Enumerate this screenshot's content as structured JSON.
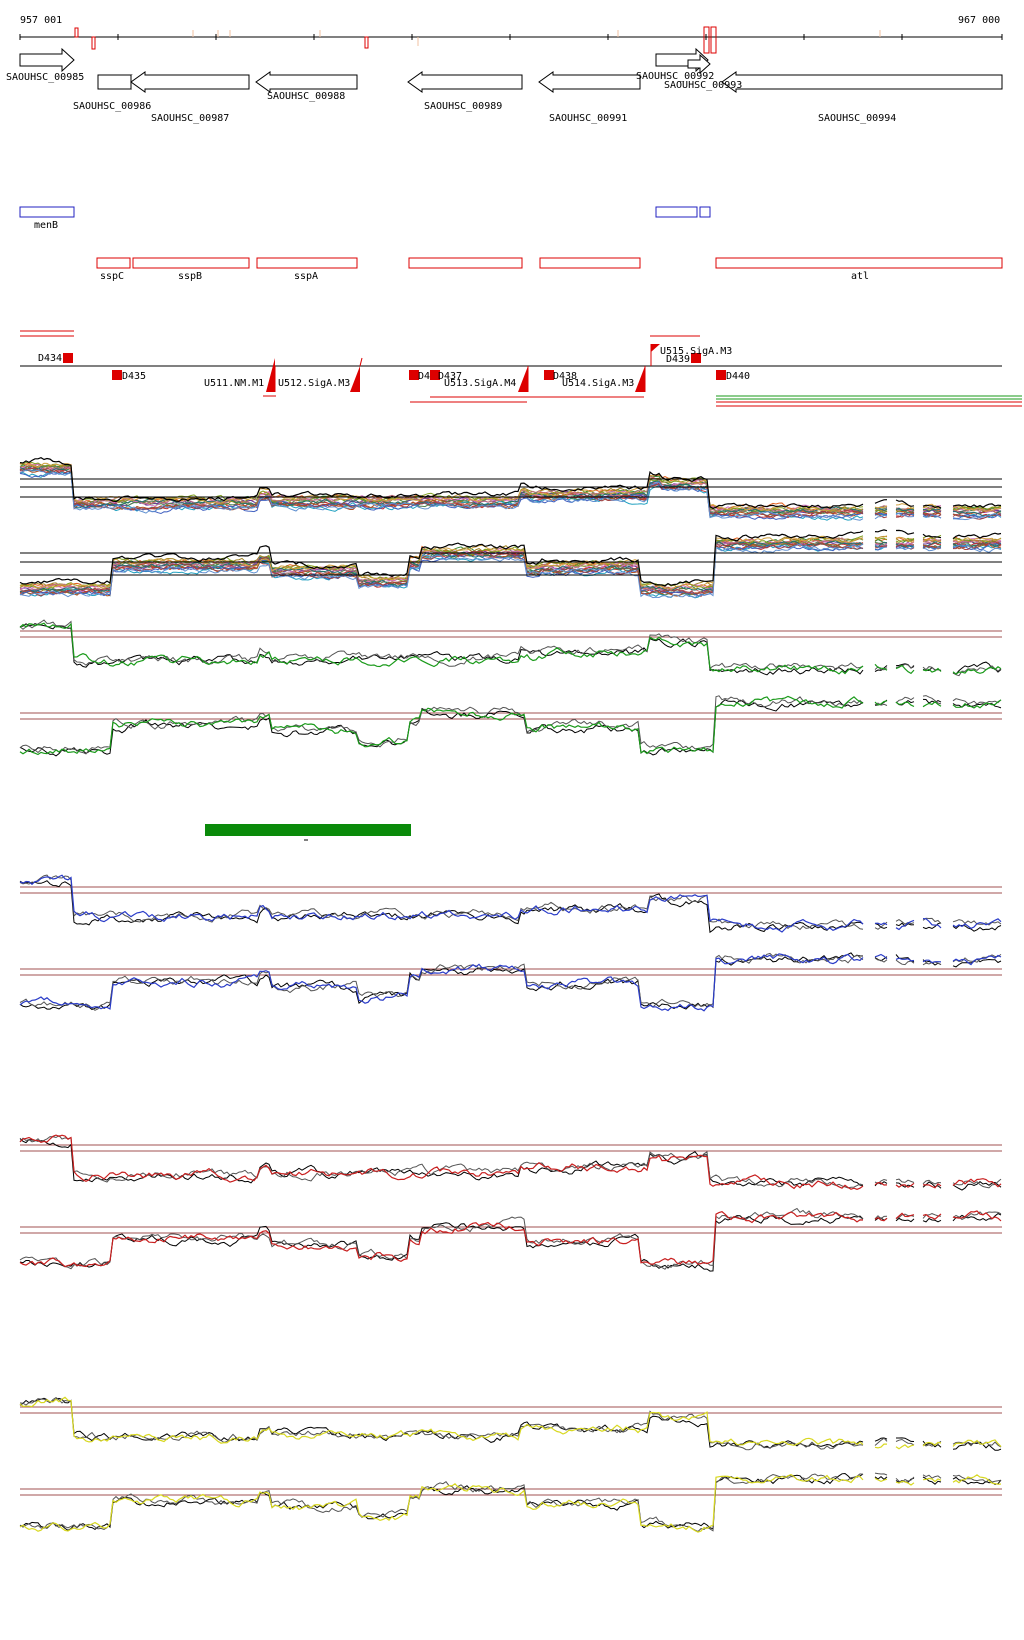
{
  "coordinates": {
    "start": "957 001",
    "end": "967 000"
  },
  "colors": {
    "gene_outline": "#000000",
    "annotation_blue": "#2020c0",
    "annotation_red": "#dd0000",
    "threshold_line": "#a05050",
    "panel1_signal": "#1a9a1a",
    "panel2_signal": "#2a3cc8",
    "panel3_signal": "#c81e1e",
    "panel4_signal": "#d8d820",
    "summary_bar": "#0a8a0a"
  },
  "genes": [
    {
      "label": "SAOUHSC_00985",
      "strand": "+"
    },
    {
      "label": "SAOUHSC_00986",
      "strand": "-"
    },
    {
      "label": "SAOUHSC_00987",
      "strand": "-"
    },
    {
      "label": "SAOUHSC_00988",
      "strand": "-"
    },
    {
      "label": "SAOUHSC_00989",
      "strand": "-"
    },
    {
      "label": "SAOUHSC_00991",
      "strand": "-"
    },
    {
      "label": "SAOUHSC_00992",
      "strand": "+"
    },
    {
      "label": "SAOUHSC_00993",
      "strand": "+"
    },
    {
      "label": "SAOUHSC_00994",
      "strand": "-"
    }
  ],
  "blue_features": [
    {
      "label": "menB"
    },
    {
      "label": ""
    },
    {
      "label": ""
    }
  ],
  "red_features": [
    {
      "label": "sspC"
    },
    {
      "label": "sspB"
    },
    {
      "label": "sspA"
    },
    {
      "label": ""
    },
    {
      "label": ""
    },
    {
      "label": "atl"
    }
  ],
  "regulatory_labels": [
    "D434",
    "D435",
    "U511.NM.M1",
    "U512.SigA.M3",
    "D4",
    "D437",
    "U513.SigA.M4",
    "D438",
    "U514.SigA.M3",
    "U515.SigA.M3",
    "D439",
    "D440"
  ],
  "panels": [
    {
      "name": "multi-sample",
      "signal_color": "multi"
    },
    {
      "name": "panel-green",
      "signal_color": "#1a9a1a"
    },
    {
      "name": "panel-blue",
      "signal_color": "#2a3cc8"
    },
    {
      "name": "panel-red",
      "signal_color": "#c81e1e"
    },
    {
      "name": "panel-yellow",
      "signal_color": "#d8d820"
    }
  ]
}
